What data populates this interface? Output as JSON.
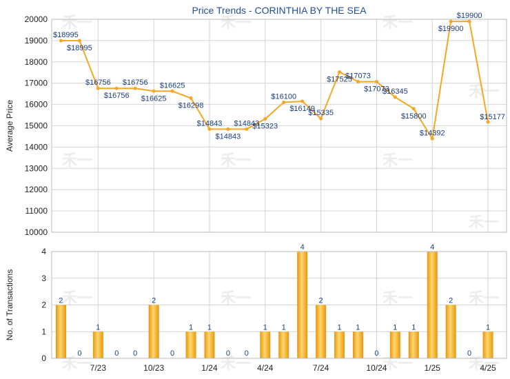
{
  "chart_data": [
    {
      "type": "line",
      "title": "Price Trends - CORINTHIA BY THE SEA",
      "ylabel": "Average Price",
      "ylim": [
        10000,
        20000
      ],
      "yticks": [
        10000,
        11000,
        12000,
        13000,
        14000,
        15000,
        16000,
        17000,
        18000,
        19000,
        20000
      ],
      "color": "#f5a623",
      "points": [
        {
          "label": "$18995",
          "value": 18995
        },
        {
          "label": "$18995",
          "value": 18995
        },
        {
          "label": "$16756",
          "value": 16756
        },
        {
          "label": "$16756",
          "value": 16756
        },
        {
          "label": "$16756",
          "value": 16756
        },
        {
          "label": "$16625",
          "value": 16625
        },
        {
          "label": "$16625",
          "value": 16625
        },
        {
          "label": "$16298",
          "value": 16298
        },
        {
          "label": "$14843",
          "value": 14843
        },
        {
          "label": "$14843",
          "value": 14843
        },
        {
          "label": "$14843",
          "value": 14843
        },
        {
          "label": "$15323",
          "value": 15323
        },
        {
          "label": "$16100",
          "value": 16100
        },
        {
          "label": "$16149",
          "value": 16149
        },
        {
          "label": "$15335",
          "value": 15335
        },
        {
          "label": "$17525",
          "value": 17525
        },
        {
          "label": "$17073",
          "value": 17073
        },
        {
          "label": "$17073",
          "value": 17073
        },
        {
          "label": "$16345",
          "value": 16345
        },
        {
          "label": "$15800",
          "value": 15800
        },
        {
          "label": "$14392",
          "value": 14392
        },
        {
          "label": "$19900",
          "value": 19900
        },
        {
          "label": "$19900",
          "value": 19900
        },
        {
          "label": "$15177",
          "value": 15177
        }
      ]
    },
    {
      "type": "bar",
      "ylabel": "No. of Transactions",
      "ylim": [
        0,
        4
      ],
      "yticks": [
        0,
        1,
        2,
        3,
        4
      ],
      "color": "#f5a623",
      "xtick_labels": [
        "7/23",
        "10/23",
        "1/24",
        "4/24",
        "7/24",
        "10/24",
        "1/25",
        "4/25"
      ],
      "values": [
        2,
        0,
        1,
        0,
        0,
        2,
        0,
        1,
        1,
        0,
        0,
        1,
        1,
        4,
        2,
        1,
        1,
        0,
        1,
        1,
        4,
        2,
        0,
        1
      ]
    }
  ],
  "watermark": "禾一"
}
